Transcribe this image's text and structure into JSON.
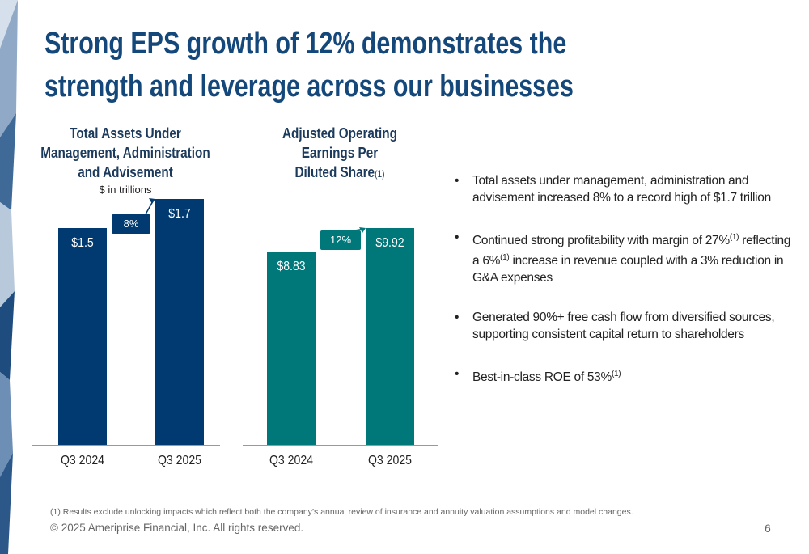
{
  "title": "Strong EPS growth of 12% demonstrates the strength and leverage across our businesses",
  "chart_data": [
    {
      "type": "bar",
      "title": "Total Assets Under Management, Administration and Advisement",
      "subtitle": "$ in trillions",
      "categories": [
        "Q3 2024",
        "Q3 2025"
      ],
      "values": [
        1.5,
        1.7
      ],
      "value_labels": [
        "$1.5",
        "$1.7"
      ],
      "color": "#003a70",
      "annotation": "8%"
    },
    {
      "type": "bar",
      "title": "Adjusted Operating Earnings Per Diluted Share",
      "title_note": "(1)",
      "categories": [
        "Q3 2024",
        "Q3 2025"
      ],
      "values": [
        8.83,
        9.92
      ],
      "value_labels": [
        "$8.83",
        "$9.92"
      ],
      "color": "#00787a",
      "annotation": "12%"
    }
  ],
  "bullets": [
    [
      {
        "text": "Total assets under management, administration and advisement increased 8% to a record high of $1.7 trillion"
      }
    ],
    [
      {
        "text": "Continued strong profitability with margin of 27%"
      },
      {
        "sup": "(1)"
      },
      {
        "text": " reflecting a 6%"
      },
      {
        "sup": "(1)"
      },
      {
        "text": " increase in revenue coupled with a 3% reduction in G&A expenses"
      }
    ],
    [
      {
        "text": "Generated 90%+ free cash flow from diversified sources, supporting consistent capital return to shareholders"
      }
    ],
    [
      {
        "text": "Best-in-class ROE of 53%"
      },
      {
        "sup": "(1)"
      }
    ]
  ],
  "footnote": "(1) Results exclude unlocking impacts which reflect both the company’s annual review of insurance and annuity valuation assumptions and model changes.",
  "copyright": "© 2025 Ameriprise Financial, Inc. All rights reserved.",
  "page_number": 6
}
